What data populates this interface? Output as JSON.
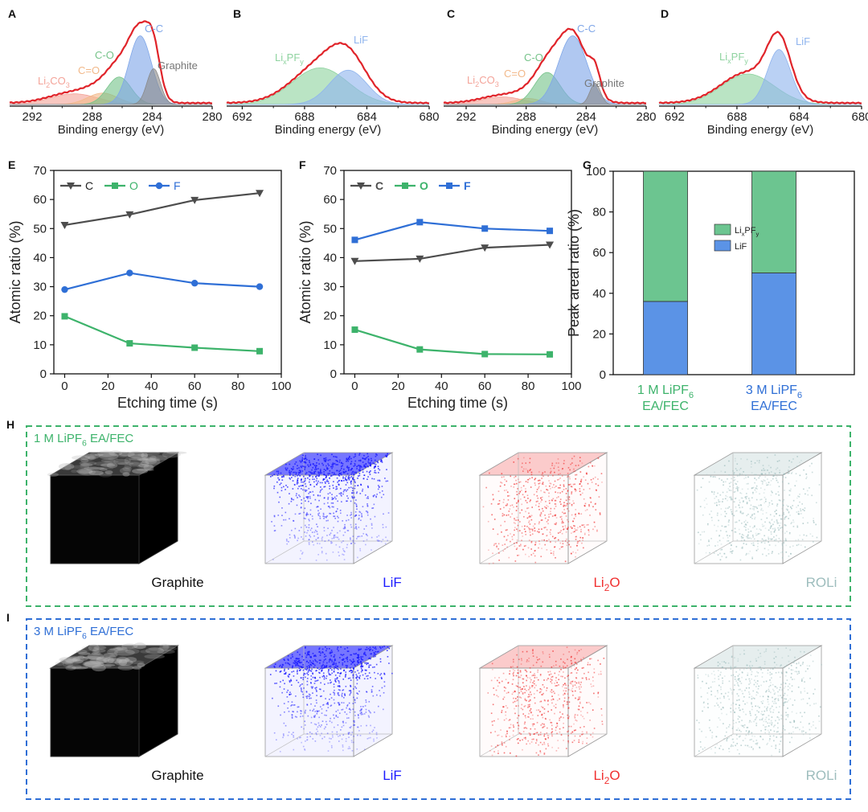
{
  "panel_letters": [
    "A",
    "B",
    "C",
    "D",
    "E",
    "F",
    "G",
    "H",
    "I"
  ],
  "colors": {
    "envelope": "#e0242a",
    "cc": "#7fa6e8",
    "co": "#76c38a",
    "co_double": "#f2b98a",
    "li2co3": "#f4a49a",
    "graphite": "#8a8a8a",
    "lixpfy": "#8fd3a0",
    "lif": "#8fb4ee",
    "series_C": "#4d4d4d",
    "series_O": "#3db36b",
    "series_F": "#2f6fd6",
    "bar_lixpfy": "#6cc590",
    "bar_lif": "#5b93e6",
    "green_label": "#3db36b",
    "blue_label": "#2f6fd6",
    "box_green": "#3db36b",
    "box_blue": "#2f6fd6",
    "lif_blue": "#1a1aff",
    "li2o_red": "#f03030",
    "roli_teal": "#9dbdbd"
  },
  "chart_data": [
    {
      "panel": "A",
      "type": "area",
      "xlabel": "Binding energy (eV)",
      "xlim": [
        293.5,
        280
      ],
      "x_ticks": [
        292,
        288,
        284,
        280
      ],
      "components": [
        {
          "name": "Li2CO3",
          "label_main": "Li",
          "label_sub1": "2",
          "label_mid": "CO",
          "label_sub2": "3",
          "center": 289.2,
          "height": 0.14,
          "width": 1.6,
          "color_key": "li2co3"
        },
        {
          "name": "C=O",
          "label": "C=O",
          "center": 287.3,
          "height": 0.15,
          "width": 1.0,
          "color_key": "co_double"
        },
        {
          "name": "C-O",
          "label": "C-O",
          "center": 286.2,
          "height": 0.36,
          "width": 0.8,
          "color_key": "co"
        },
        {
          "name": "C-C",
          "label": "C-C",
          "center": 284.8,
          "height": 0.9,
          "width": 0.75,
          "color_key": "cc"
        },
        {
          "name": "Graphite",
          "label": "Graphite",
          "center": 283.9,
          "height": 0.47,
          "width": 0.45,
          "color_key": "graphite"
        }
      ]
    },
    {
      "panel": "B",
      "type": "area",
      "xlabel": "Binding energy (eV)",
      "xlim": [
        693,
        680
      ],
      "x_ticks": [
        692,
        688,
        684,
        680
      ],
      "components": [
        {
          "name": "LixPFy",
          "label_main": "Li",
          "label_sub1": "x",
          "label_mid": "PF",
          "label_sub2": "y",
          "center": 687.0,
          "height": 0.48,
          "width": 1.8,
          "color_key": "lixpfy"
        },
        {
          "name": "LiF",
          "label": "LiF",
          "center": 685.2,
          "height": 0.45,
          "width": 1.2,
          "color_key": "lif"
        }
      ]
    },
    {
      "panel": "C",
      "type": "area",
      "xlabel": "Binding energy (eV)",
      "xlim": [
        293.5,
        280
      ],
      "x_ticks": [
        292,
        288,
        284,
        280
      ],
      "components": [
        {
          "name": "Li2CO3",
          "label_main": "Li",
          "label_sub1": "2",
          "label_mid": "CO",
          "label_sub2": "3",
          "center": 289.6,
          "height": 0.1,
          "width": 1.4,
          "color_key": "li2co3"
        },
        {
          "name": "C=O",
          "label": "C=O",
          "center": 287.9,
          "height": 0.08,
          "width": 0.9,
          "color_key": "co_double"
        },
        {
          "name": "C-O",
          "label": "C-O",
          "center": 286.6,
          "height": 0.42,
          "width": 0.85,
          "color_key": "co"
        },
        {
          "name": "C-C",
          "label": "C-C",
          "center": 284.9,
          "height": 0.9,
          "width": 0.95,
          "color_key": "cc"
        },
        {
          "name": "Graphite",
          "label": "Graphite",
          "center": 283.4,
          "height": 0.28,
          "width": 0.35,
          "color_key": "graphite"
        }
      ]
    },
    {
      "panel": "D",
      "type": "area",
      "xlabel": "Binding energy (eV)",
      "xlim": [
        693,
        680
      ],
      "x_ticks": [
        692,
        688,
        684,
        680
      ],
      "components": [
        {
          "name": "LixPFy",
          "label_main": "Li",
          "label_sub1": "x",
          "label_mid": "PF",
          "label_sub2": "y",
          "center": 687.3,
          "height": 0.4,
          "width": 1.7,
          "color_key": "lixpfy"
        },
        {
          "name": "LiF",
          "label": "LiF",
          "center": 685.3,
          "height": 0.72,
          "width": 0.75,
          "color_key": "lif"
        }
      ]
    },
    {
      "panel": "E",
      "type": "line",
      "xlabel": "Etching time (s)",
      "ylabel": "Atomic ratio (%)",
      "xlim": [
        -5,
        100
      ],
      "ylim": [
        0,
        70
      ],
      "x_ticks": [
        0,
        20,
        40,
        60,
        80,
        100
      ],
      "y_ticks": [
        0,
        10,
        20,
        30,
        40,
        50,
        60,
        70
      ],
      "x": [
        0,
        30,
        60,
        90
      ],
      "series": [
        {
          "name": "C",
          "values": [
            51.2,
            54.8,
            59.8,
            62.2
          ],
          "marker": "triangle-down",
          "color_key": "series_C"
        },
        {
          "name": "O",
          "values": [
            19.8,
            10.5,
            9.0,
            7.8
          ],
          "marker": "square",
          "color_key": "series_O"
        },
        {
          "name": "F",
          "values": [
            29.0,
            34.7,
            31.2,
            30.0
          ],
          "marker": "circle",
          "color_key": "series_F"
        }
      ]
    },
    {
      "panel": "F",
      "type": "line",
      "xlabel": "Etching time (s)",
      "ylabel": "Atomic ratio (%)",
      "xlim": [
        -5,
        100
      ],
      "ylim": [
        0,
        70
      ],
      "x_ticks": [
        0,
        20,
        40,
        60,
        80,
        100
      ],
      "y_ticks": [
        0,
        10,
        20,
        30,
        40,
        50,
        60,
        70
      ],
      "x": [
        0,
        30,
        60,
        90
      ],
      "series": [
        {
          "name": "C",
          "values": [
            38.8,
            39.6,
            43.4,
            44.4
          ],
          "marker": "triangle-down",
          "color_key": "series_C"
        },
        {
          "name": "O",
          "values": [
            15.2,
            8.4,
            6.8,
            6.7
          ],
          "marker": "square",
          "color_key": "series_O"
        },
        {
          "name": "F",
          "values": [
            46.1,
            52.2,
            50.0,
            49.2
          ],
          "marker": "square",
          "color_key": "series_F"
        }
      ]
    },
    {
      "panel": "G",
      "type": "bar",
      "stacked": true,
      "ylabel": "Peak areal ratio (%)",
      "ylim": [
        0,
        100
      ],
      "y_ticks": [
        0,
        20,
        40,
        60,
        80,
        100
      ],
      "categories": [
        {
          "line1_main": "1 M LiPF",
          "line1_sub": "6",
          "line2": "EA/FEC",
          "color_key": "green_label"
        },
        {
          "line1_main": "3 M LiPF",
          "line1_sub": "6",
          "line2": "EA/FEC",
          "color_key": "blue_label"
        }
      ],
      "series": [
        {
          "name": "LiF",
          "values": [
            36,
            50
          ],
          "color_key": "bar_lif"
        },
        {
          "name": "LixPFy",
          "values": [
            64,
            50
          ],
          "color_key": "bar_lixpfy"
        }
      ],
      "legend": [
        {
          "main": "Li",
          "sub1": "x",
          "mid": "PF",
          "sub2": "y",
          "color_key": "bar_lixpfy"
        },
        {
          "main": "LiF",
          "color_key": "bar_lif"
        }
      ]
    }
  ],
  "panel_H": {
    "title_main": "1 M LiPF",
    "title_sub": "6",
    "title_rest": " EA/FEC",
    "cubes": [
      {
        "label_main": "Graphite"
      },
      {
        "label_main": "LiF"
      },
      {
        "label_main": "Li",
        "label_sub": "2",
        "label_rest": "O"
      },
      {
        "label_main": "ROLi"
      }
    ]
  },
  "panel_I": {
    "title_main": "3 M LiPF",
    "title_sub": "6",
    "title_rest": " EA/FEC",
    "cubes": [
      {
        "label_main": "Graphite"
      },
      {
        "label_main": "LiF"
      },
      {
        "label_main": "Li",
        "label_sub": "2",
        "label_rest": "O"
      },
      {
        "label_main": "ROLi"
      }
    ]
  }
}
